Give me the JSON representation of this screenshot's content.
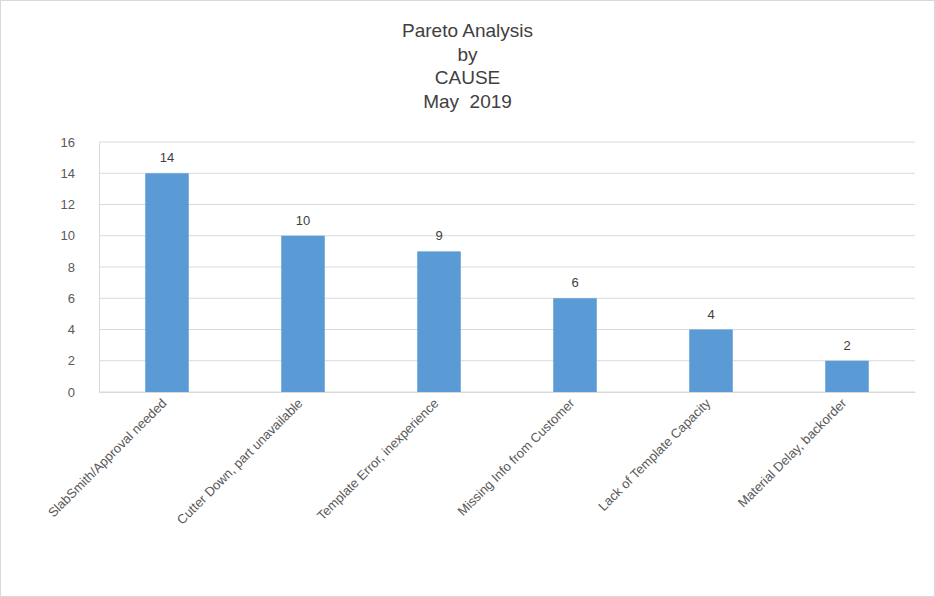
{
  "chart_data": {
    "type": "bar",
    "title": [
      "Pareto Analysis",
      "by",
      "CAUSE",
      "May  2019"
    ],
    "categories": [
      "SlabSmith/Approval needed",
      "Cutter Down, part unavailable",
      "Template Error, inexperience",
      "Missing Info from Customer",
      "Lack of Template Capacity",
      "Material Delay, backorder"
    ],
    "values": [
      14,
      10,
      9,
      6,
      4,
      2
    ],
    "color": "#5b9bd5",
    "ylim": [
      0,
      16
    ],
    "yticks": [
      0,
      2,
      4,
      6,
      8,
      10,
      12,
      14,
      16
    ],
    "grid": true,
    "data_labels": true
  }
}
